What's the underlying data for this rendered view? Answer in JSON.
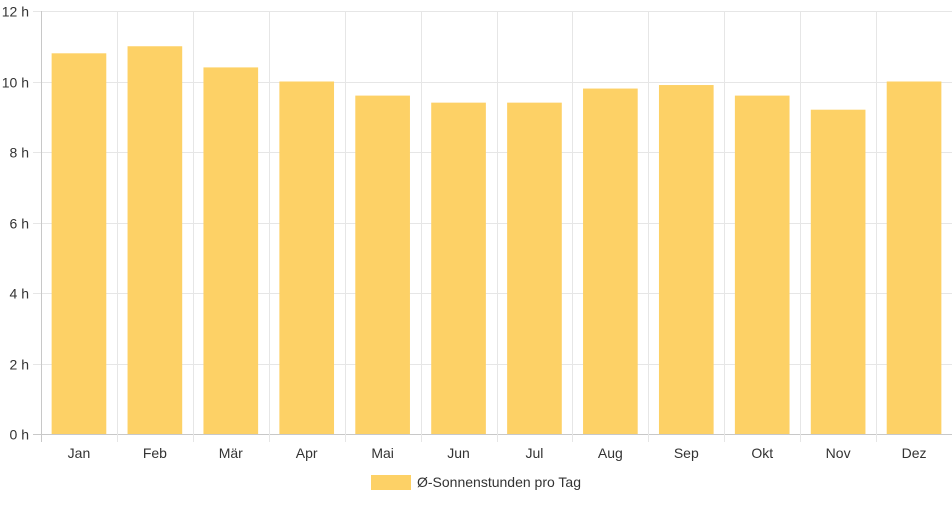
{
  "chart_data": {
    "type": "bar",
    "categories": [
      "Jan",
      "Feb",
      "Mär",
      "Apr",
      "Mai",
      "Jun",
      "Jul",
      "Aug",
      "Sep",
      "Okt",
      "Nov",
      "Dez"
    ],
    "series": [
      {
        "name": "Ø-Sonnenstunden pro Tag",
        "values": [
          10.8,
          11.0,
          10.4,
          10.0,
          9.6,
          9.4,
          9.4,
          9.8,
          9.9,
          9.6,
          9.2,
          10.0
        ],
        "color": "#fdd166"
      }
    ],
    "ylim": [
      0,
      12
    ],
    "yticks": [
      "0 h",
      "2 h",
      "4 h",
      "6 h",
      "8 h",
      "10 h",
      "12 h"
    ],
    "ytick_values": [
      0,
      2,
      4,
      6,
      8,
      10,
      12
    ],
    "grid": true,
    "legend_position": "bottom"
  },
  "colors": {
    "grid": "#e6e6e6",
    "axis": "#c8c8c8",
    "text": "#333333"
  }
}
